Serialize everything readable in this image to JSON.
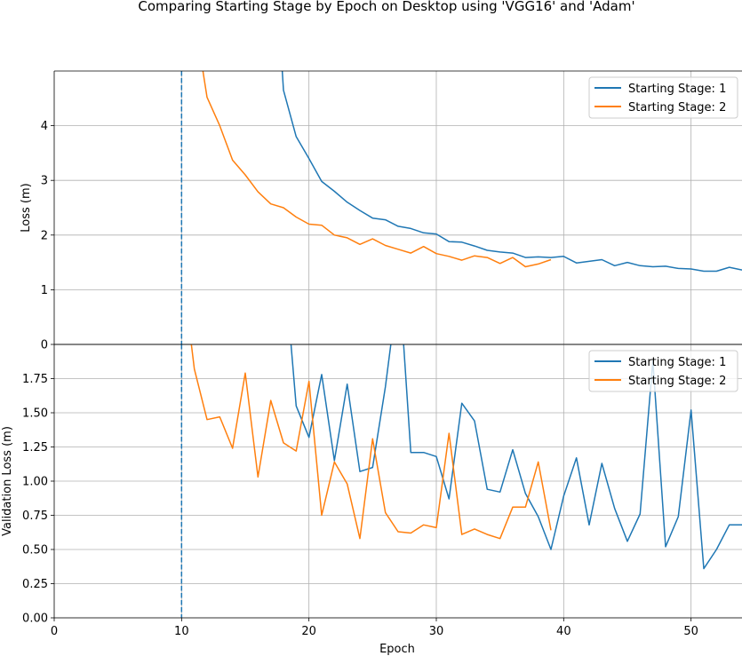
{
  "figure": {
    "title": "Comparing Starting Stage by Epoch on Desktop using 'VGG16' and 'Adam'",
    "xlabel": "Epoch",
    "vline_x": 10
  },
  "chart_data": [
    {
      "type": "line",
      "title": "Comparing Starting Stage by Epoch on Desktop using 'VGG16' and 'Adam'",
      "xlabel": "",
      "ylabel": "Loss (m)",
      "xlim": [
        0,
        54
      ],
      "ylim": [
        0,
        5
      ],
      "xticks": [
        0,
        10,
        20,
        30,
        40,
        50
      ],
      "yticks": [
        0,
        1,
        2,
        3,
        4
      ],
      "grid": true,
      "legend_position": "top-right",
      "vline": {
        "x": 10,
        "style": "dashed",
        "color": "#1f77b4"
      },
      "series": [
        {
          "name": "Starting Stage: 1",
          "color": "#1f77b4",
          "x": [
            17.5,
            18,
            19,
            20,
            21,
            22,
            23,
            24,
            25,
            26,
            27,
            28,
            29,
            30,
            31,
            32,
            33,
            34,
            35,
            36,
            37,
            38,
            39,
            40,
            41,
            42,
            43,
            44,
            45,
            46,
            47,
            48,
            49,
            50,
            51,
            52,
            53,
            54
          ],
          "y": [
            6.5,
            4.65,
            3.8,
            3.4,
            2.98,
            2.8,
            2.6,
            2.45,
            2.31,
            2.28,
            2.16,
            2.12,
            2.04,
            2.02,
            1.88,
            1.87,
            1.8,
            1.72,
            1.69,
            1.67,
            1.59,
            1.6,
            1.59,
            1.61,
            1.49,
            1.52,
            1.55,
            1.44,
            1.5,
            1.44,
            1.42,
            1.43,
            1.39,
            1.38,
            1.34,
            1.34,
            1.41,
            1.36
          ]
        },
        {
          "name": "Starting Stage: 2",
          "color": "#ff7f0e",
          "x": [
            11,
            12,
            13,
            14,
            15,
            16,
            17,
            18,
            19,
            20,
            21,
            22,
            23,
            24,
            25,
            26,
            27,
            28,
            29,
            30,
            31,
            32,
            33,
            34,
            35,
            36,
            37,
            38,
            39
          ],
          "y": [
            6.0,
            4.52,
            4.0,
            3.37,
            3.1,
            2.79,
            2.57,
            2.5,
            2.33,
            2.2,
            2.18,
            2.0,
            1.95,
            1.83,
            1.93,
            1.81,
            1.74,
            1.67,
            1.79,
            1.66,
            1.61,
            1.54,
            1.62,
            1.59,
            1.48,
            1.59,
            1.42,
            1.47,
            1.55
          ]
        }
      ]
    },
    {
      "type": "line",
      "title": "",
      "xlabel": "Epoch",
      "ylabel": "Validation Loss (m)",
      "xlim": [
        0,
        54
      ],
      "ylim": [
        0,
        2
      ],
      "xticks": [
        0,
        10,
        20,
        30,
        40,
        50
      ],
      "yticks": [
        0.0,
        0.25,
        0.5,
        0.75,
        1.0,
        1.25,
        1.5,
        1.75
      ],
      "ytick_labels": [
        "0.00",
        "0.25",
        "0.50",
        "0.75",
        "1.00",
        "1.25",
        "1.50",
        "1.75"
      ],
      "grid": true,
      "legend_position": "top-right",
      "vline": {
        "x": 10,
        "style": "dashed",
        "color": "#1f77b4"
      },
      "series": [
        {
          "name": "Starting Stage: 1",
          "color": "#1f77b4",
          "x": [
            18.5,
            19,
            20,
            21,
            22,
            23,
            24,
            25,
            26,
            26.5,
            27.4,
            28,
            29,
            30,
            31,
            32,
            33,
            34,
            35,
            36,
            37,
            38,
            39,
            40,
            41,
            42,
            43,
            44,
            45,
            46,
            47,
            48,
            49,
            50,
            51,
            52,
            53,
            54
          ],
          "y": [
            2.1,
            1.55,
            1.32,
            1.78,
            1.15,
            1.71,
            1.07,
            1.1,
            1.69,
            2.05,
            2.05,
            1.21,
            1.21,
            1.18,
            0.87,
            1.57,
            1.44,
            0.94,
            0.92,
            1.23,
            0.91,
            0.74,
            0.5,
            0.89,
            1.17,
            0.68,
            1.13,
            0.8,
            0.56,
            0.76,
            1.88,
            0.52,
            0.74,
            1.52,
            0.36,
            0.5,
            0.68,
            0.68
          ]
        },
        {
          "name": "Starting Stage: 2",
          "color": "#ff7f0e",
          "x": [
            10.7,
            11,
            12,
            13,
            14,
            15,
            16,
            17,
            18,
            19,
            20,
            21,
            22,
            23,
            24,
            25,
            26,
            27,
            28,
            29,
            30,
            31,
            32,
            33,
            34,
            35,
            36,
            37,
            38,
            39
          ],
          "y": [
            2.05,
            1.82,
            1.45,
            1.47,
            1.24,
            1.79,
            1.03,
            1.59,
            1.28,
            1.22,
            1.73,
            0.75,
            1.14,
            0.98,
            0.58,
            1.31,
            0.77,
            0.63,
            0.62,
            0.68,
            0.66,
            1.35,
            0.61,
            0.65,
            0.61,
            0.58,
            0.81,
            0.81,
            1.14,
            0.64
          ]
        }
      ]
    }
  ]
}
